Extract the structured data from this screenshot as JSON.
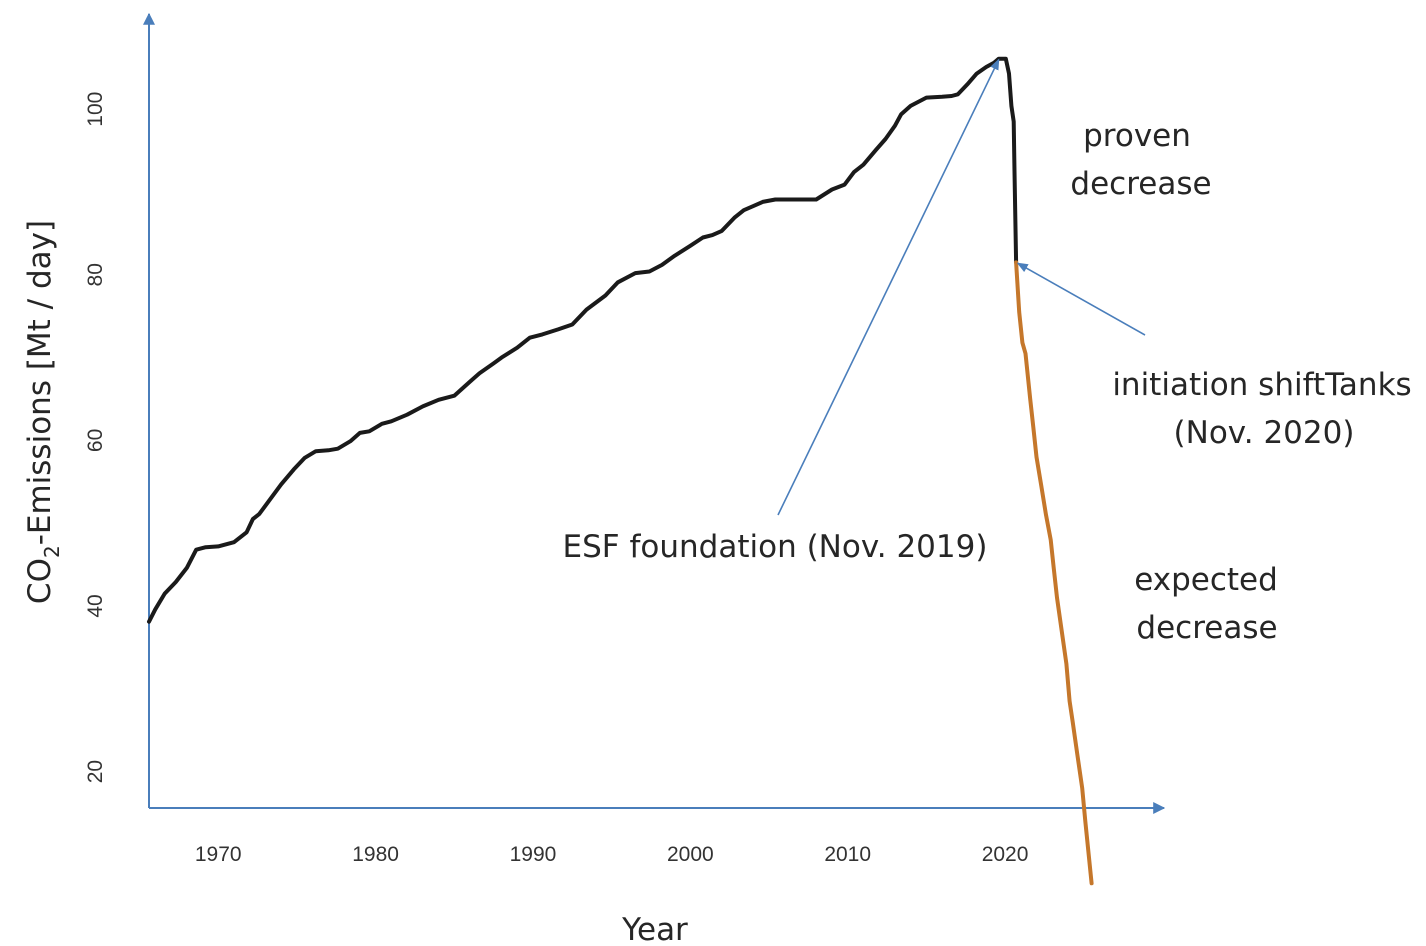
{
  "chart_data": {
    "type": "line",
    "xlabel": "Year",
    "ylabel": "CO₂-Emissions [Mt / day]",
    "ylabel_parts": [
      "CO",
      "2",
      "-Emissions [Mt / day]"
    ],
    "xlim": [
      1965.6,
      2030.1
    ],
    "ylim": [
      15.6,
      111.5
    ],
    "x_ticks": [
      1970,
      1980,
      1990,
      2000,
      2010,
      2020
    ],
    "y_ticks": [
      20,
      40,
      60,
      80,
      100
    ],
    "grid": false,
    "colors": {
      "axis": "#4a7ebb",
      "history": "#1a1a1a",
      "projection": "#c5772b",
      "arrow": "#4a7ebb"
    },
    "series": [
      {
        "role": "history",
        "x": [
          1965.6,
          1966.0,
          1966.6,
          1967.3,
          1968.0,
          1968.6,
          1969.2,
          1970.0,
          1971.0,
          1971.8,
          1972.2,
          1972.6,
          1973.3,
          1974.0,
          1974.8,
          1975.5,
          1976.2,
          1977.0,
          1977.6,
          1978.4,
          1979.0,
          1979.6,
          1980.4,
          1981.0,
          1982.0,
          1983.0,
          1984.0,
          1985.0,
          1986.0,
          1986.6,
          1987.5,
          1988.0,
          1989.0,
          1989.8,
          1990.6,
          1991.6,
          1992.5,
          1993.4,
          1994.6,
          1995.4,
          1996.5,
          1997.4,
          1998.2,
          1999.0,
          2000.0,
          2000.8,
          2001.4,
          2002.0,
          2002.8,
          2003.4,
          2004.0,
          2004.6,
          2005.4,
          2006.0,
          2007.0,
          2008.0,
          2009.0,
          2009.8,
          2010.4,
          2011.0,
          2011.8,
          2012.4,
          2013.0,
          2013.4,
          2014.0,
          2015.0,
          2016.0,
          2016.6,
          2017.0,
          2017.6,
          2018.2,
          2018.8,
          2019.3,
          2019.6,
          2019.85,
          2020.05,
          2020.25,
          2020.4,
          2020.55,
          2020.6,
          2020.7
        ],
        "y": [
          38.1,
          39.6,
          41.5,
          42.9,
          44.6,
          46.8,
          47.1,
          47.2,
          47.7,
          48.9,
          50.5,
          51.1,
          52.9,
          54.7,
          56.5,
          57.9,
          58.7,
          58.8,
          59.0,
          59.9,
          60.9,
          61.1,
          62.0,
          62.3,
          63.1,
          64.1,
          64.9,
          65.4,
          67.1,
          68.1,
          69.3,
          70.0,
          71.2,
          72.4,
          72.8,
          73.4,
          74.0,
          75.8,
          77.5,
          79.1,
          80.2,
          80.4,
          81.2,
          82.3,
          83.5,
          84.5,
          84.8,
          85.3,
          86.9,
          87.8,
          88.3,
          88.8,
          89.1,
          89.1,
          89.1,
          89.1,
          90.3,
          90.9,
          92.4,
          93.3,
          95.1,
          96.4,
          98.0,
          99.4,
          100.4,
          101.4,
          101.5,
          101.6,
          101.8,
          103.0,
          104.3,
          105.1,
          105.6,
          106.1,
          106.1,
          106.1,
          104.3,
          100.4,
          98.5,
          92.5,
          81.5
        ]
      },
      {
        "role": "projection",
        "x": [
          2020.7,
          2020.9,
          2021.1,
          2021.3,
          2021.6,
          2021.8,
          2022.0,
          2022.3,
          2022.6,
          2022.9,
          2023.1,
          2023.3,
          2023.6,
          2023.9,
          2024.1,
          2024.3,
          2024.6,
          2024.9,
          2025.1,
          2025.5
        ],
        "y": [
          81.5,
          75.5,
          71.8,
          70.5,
          65.0,
          61.5,
          58.0,
          54.5,
          51.0,
          48.0,
          44.5,
          41.0,
          37.0,
          33.0,
          28.5,
          26.0,
          22.0,
          18.0,
          14.0,
          6.5
        ]
      }
    ],
    "annotations": [
      {
        "name": "proven-decrease",
        "lines": [
          "proven",
          "decrease"
        ]
      },
      {
        "name": "initiation-shifttanks",
        "lines": [
          "initiation shiftTanks",
          "(Nov. 2020)"
        ],
        "arrow_to": {
          "x": 2020.8,
          "y": 81.4
        }
      },
      {
        "name": "esf-foundation",
        "lines": [
          "ESF foundation (Nov. 2019)"
        ],
        "arrow_to": {
          "x": 2019.6,
          "y": 106.0
        }
      },
      {
        "name": "expected-decrease",
        "lines": [
          "expected",
          "decrease"
        ]
      }
    ]
  }
}
